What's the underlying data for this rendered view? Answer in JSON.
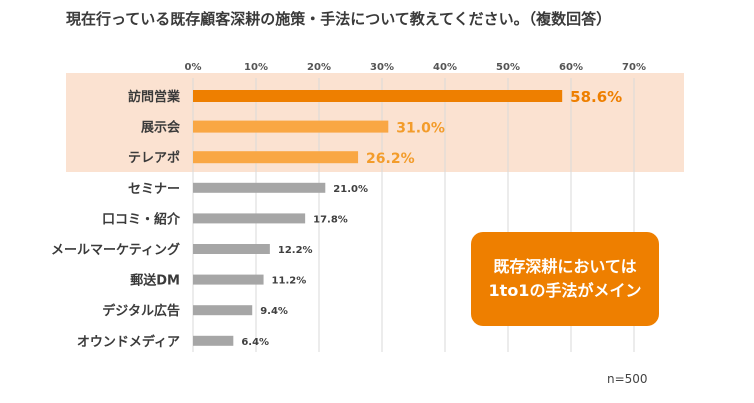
{
  "chart_data": {
    "type": "bar",
    "orientation": "horizontal",
    "title": "現在行っている既存顧客深耕の施策・手法について教えてください。（複数回答）",
    "categories": [
      "訪問営業",
      "展示会",
      "テレアポ",
      "セミナー",
      "口コミ・紹介",
      "メールマーケティング",
      "郵送DM",
      "デジタル広告",
      "オウンドメディア"
    ],
    "values": [
      58.6,
      31.0,
      26.2,
      21.0,
      17.8,
      12.2,
      11.2,
      9.4,
      6.4
    ],
    "value_labels": [
      "58.6%",
      "31.0%",
      "26.2%",
      "21.0%",
      "17.8%",
      "12.2%",
      "11.2%",
      "9.4%",
      "6.4%"
    ],
    "highlight_count": 3,
    "xlim": [
      0,
      70
    ],
    "x_ticks": [
      0,
      10,
      20,
      30,
      40,
      50,
      60,
      70
    ],
    "x_tick_labels": [
      "0%",
      "10%",
      "20%",
      "30%",
      "40%",
      "50%",
      "60%",
      "70%"
    ],
    "grid": true,
    "legend": "none"
  },
  "callout": {
    "line1": "既存深耕においては",
    "line2": "1to1の手法がメイン"
  },
  "footnote": "n=500",
  "colors": {
    "highlight_bg": "#fbe2d1",
    "top_bar": "#ee7f00",
    "highlight_bar": "#f9a744",
    "top_label": "#ee7f00",
    "highlight_label": "#f39c2b",
    "gray_bar": "#a6a6a6",
    "gray_label": "#3f3f3f",
    "category_label": "#3a3a3a",
    "tick_label": "#555555",
    "gridline": "#d9d9d9"
  }
}
